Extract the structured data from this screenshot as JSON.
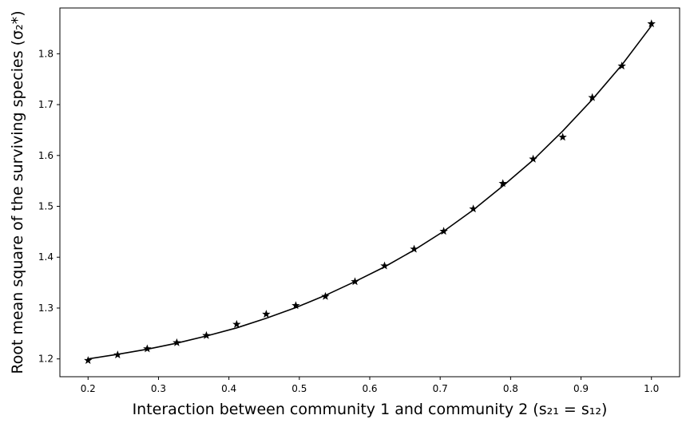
{
  "chart_data": {
    "type": "line",
    "title": "",
    "xlabel": "Interaction between community 1 and community 2 (s₂₁ = s₁₂)",
    "ylabel": "Root mean square of the surviving species (σ₂*)",
    "xlim": [
      0.16,
      1.04
    ],
    "ylim": [
      1.165,
      1.89
    ],
    "x_ticks": [
      0.2,
      0.3,
      0.4,
      0.5,
      0.6,
      0.7,
      0.8,
      0.9,
      1.0
    ],
    "x_tick_labels": [
      "0.2",
      "0.3",
      "0.4",
      "0.5",
      "0.6",
      "0.7",
      "0.8",
      "0.9",
      "1.0"
    ],
    "y_ticks": [
      1.2,
      1.3,
      1.4,
      1.5,
      1.6,
      1.7,
      1.8
    ],
    "y_tick_labels": [
      "1.2",
      "1.3",
      "1.4",
      "1.5",
      "1.6",
      "1.7",
      "1.8"
    ],
    "grid": false,
    "series": [
      {
        "kind": "line",
        "color": "#000000",
        "x": [
          0.2,
          0.242,
          0.284,
          0.326,
          0.368,
          0.411,
          0.453,
          0.495,
          0.537,
          0.579,
          0.621,
          0.663,
          0.705,
          0.747,
          0.789,
          0.832,
          0.874,
          0.916,
          0.958,
          1.0
        ],
        "y": [
          1.2,
          1.209,
          1.219,
          1.231,
          1.245,
          1.261,
          1.28,
          1.301,
          1.325,
          1.352,
          1.381,
          1.414,
          1.451,
          1.493,
          1.54,
          1.591,
          1.648,
          1.71,
          1.778,
          1.855
        ]
      },
      {
        "kind": "scatter",
        "marker": "star",
        "color": "#000000",
        "x": [
          0.2,
          0.242,
          0.284,
          0.326,
          0.368,
          0.411,
          0.453,
          0.495,
          0.537,
          0.579,
          0.621,
          0.663,
          0.705,
          0.747,
          0.789,
          0.832,
          0.874,
          0.916,
          0.958,
          1.0
        ],
        "y": [
          1.197,
          1.208,
          1.22,
          1.232,
          1.246,
          1.268,
          1.288,
          1.305,
          1.323,
          1.352,
          1.383,
          1.416,
          1.451,
          1.495,
          1.545,
          1.593,
          1.636,
          1.714,
          1.776,
          1.859
        ]
      }
    ]
  }
}
